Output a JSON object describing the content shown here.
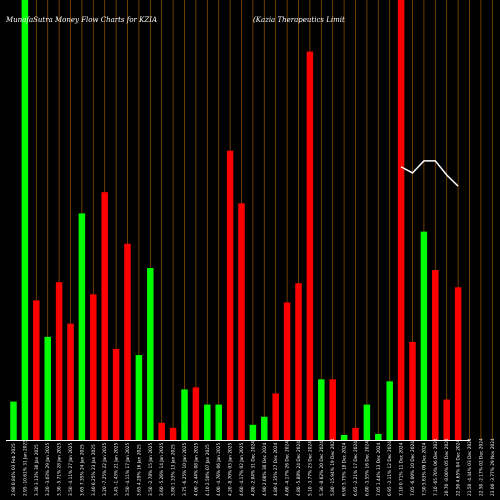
{
  "chart_data": {
    "type": "bar",
    "title": "MunafaSutra  Money Flow  Charts for KZIA",
    "subtitle": "(Kazia  Therapeutics Limit",
    "ylim": [
      0,
      435
    ],
    "grid": "vertical",
    "colors": {
      "background": "#000000",
      "up": "#00ff00",
      "down": "#ff0000",
      "grid": "#8a4a00",
      "line": "#ffffff",
      "axis": "#ffffff"
    },
    "categories": [
      "2.98 0.84% 03 Feb 2025",
      "2.95 -10.61% 31 Jan 2025",
      "3.30 3.13% 30 Jan 2025",
      "3.20 -3.03% 29 Jan 2025",
      "3.30 -5.71% 28 Jan 2025",
      "3.50 -4.11% 27 Jan 2025",
      "3.65 7.35% 24 Jan 2025",
      "3.40 6.25% 23 Jan 2025",
      "3.20 -7.25% 22 Jan 2025",
      "3.45 -1.43% 21 Jan 2025",
      "3.50 -4.11% 17 Jan 2025",
      "3.65 4.29% 16 Jan 2025",
      "3.50 -2.78% 15 Jan 2025",
      "3.60 -5.26% 14 Jan 2025",
      "3.80 1.33% 13 Jan 2025",
      "3.75 -6.25% 10 Jan 2025",
      "4.00 -2.44% 08 Jan 2025",
      "4.10 2.50% 07 Jan 2025",
      "4.00 -4.76% 06 Jan 2025",
      "4.20 -8.70% 03 Jan 2025",
      "4.60 -4.17% 02 Jan 2025",
      "4.80 -2.04% 31 Dec 2024",
      "4.90 2.08% 30 Dec 2024",
      "4.80 4.35% 27 Dec 2024",
      "4.60 -4.17% 26 Dec 2024",
      "4.80 -5.88% 24 Dec 2024",
      "5.10 -3.77% 23 Dec 2024",
      "5.30 -8.62% 20 Dec 2024",
      "5.80 -15.94% 19 Dec 2024",
      "6.90 3.75% 18 Dec 2024",
      "6.65 -2.21% 17 Dec 2024",
      "6.80 -3.55% 16 Dec 2024",
      "7.05 1.44% 13 Dec 2024",
      "6.95 -2.11% 12 Dec 2024",
      "7.10 0.71% 11 Dec 2024",
      "7.05 -6.00% 10 Dec 2024",
      "7.50 5.63% 09 Dec 2024",
      "7.10 -65.70% 06 Dec 2024",
      "20.70 -8.00% 05 Dec 2024",
      "22.50 4.65% 04 Dec 2024",
      "21.50 -4.44% 03 Dec 2024",
      "22.50 -2.17% 02 Dec 2024",
      "23.00 -3.77% 29 Nov 2024"
    ],
    "series": [
      {
        "values": [
          38,
          440,
          138,
          102,
          156,
          115,
          224,
          144,
          245,
          90,
          194,
          84,
          170,
          17,
          12,
          50,
          52,
          35,
          35,
          286,
          234,
          15,
          23,
          46,
          136,
          155,
          384,
          60,
          60,
          5,
          12,
          35,
          6,
          58,
          440,
          97,
          206,
          168,
          40,
          151,
          0,
          0,
          0
        ],
        "directions": [
          "up",
          "up",
          "down",
          "up",
          "down",
          "down",
          "up",
          "down",
          "down",
          "down",
          "down",
          "up",
          "up",
          "down",
          "down",
          "up",
          "down",
          "up",
          "up",
          "down",
          "down",
          "up",
          "up",
          "down",
          "down",
          "down",
          "down",
          "up",
          "down",
          "up",
          "down",
          "up",
          "up",
          "up",
          "down",
          "down",
          "up",
          "down",
          "down",
          "down",
          "down",
          "down",
          "down"
        ]
      },
      {
        "type": "line",
        "values": [
          null,
          null,
          null,
          null,
          null,
          null,
          null,
          null,
          null,
          null,
          null,
          null,
          null,
          null,
          null,
          null,
          null,
          null,
          null,
          null,
          null,
          null,
          null,
          null,
          null,
          null,
          null,
          null,
          null,
          null,
          null,
          null,
          null,
          null,
          270,
          264,
          276,
          276,
          262,
          251,
          null,
          null,
          null
        ]
      }
    ]
  }
}
